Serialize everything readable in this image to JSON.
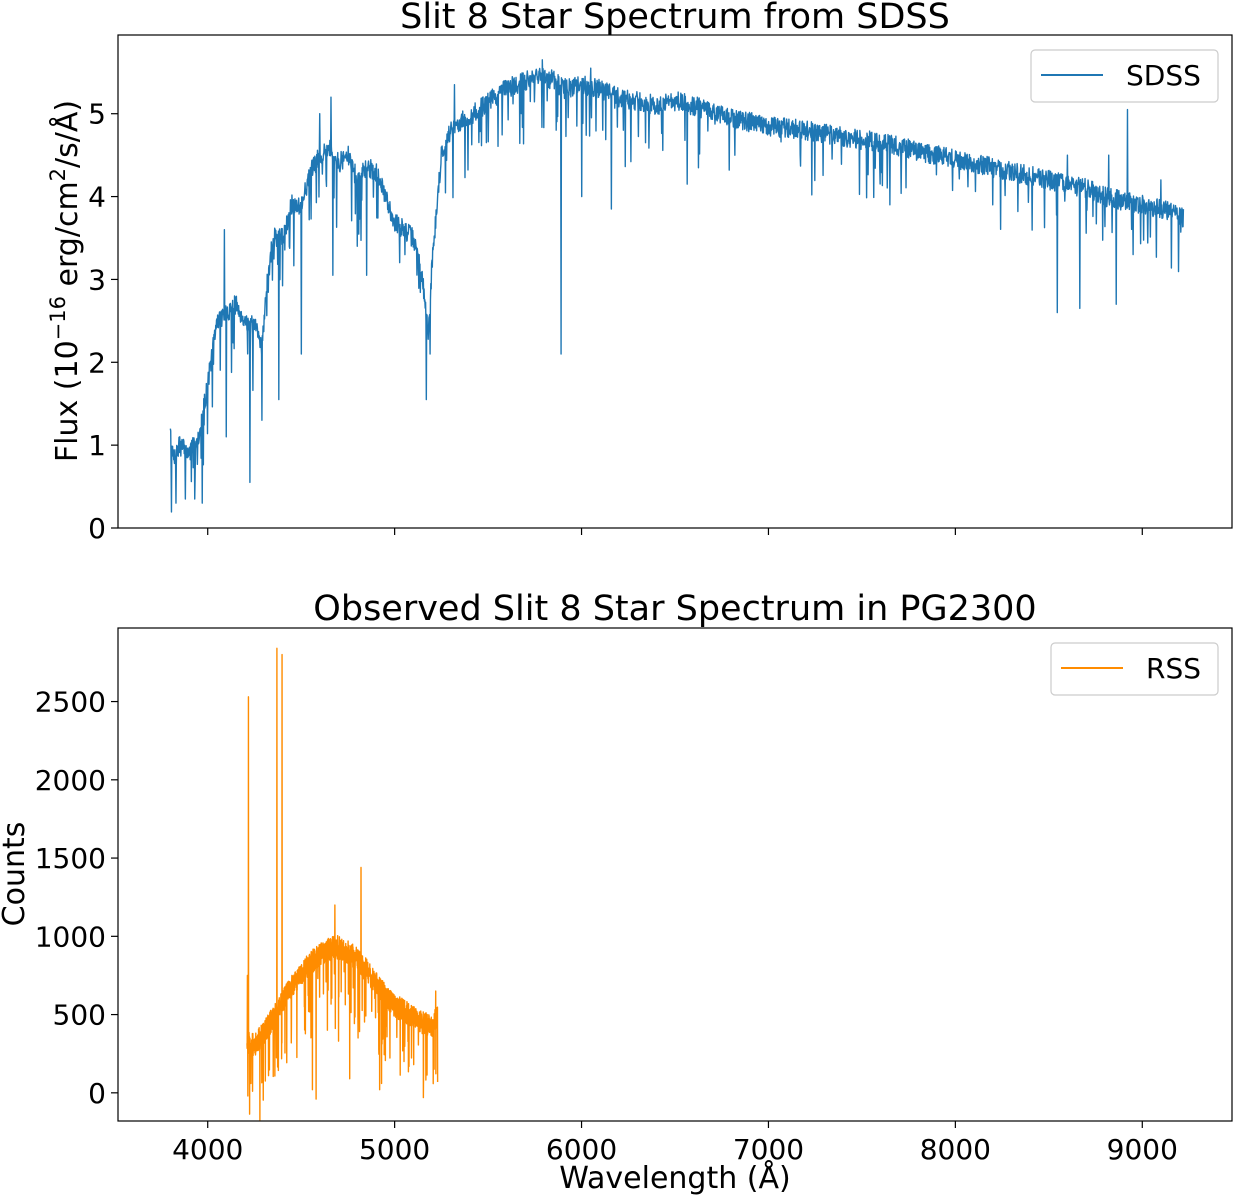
{
  "chart_data": [
    {
      "type": "line",
      "title": "Slit 8 Star Spectrum from SDSS",
      "xlabel": "",
      "ylabel_parts": {
        "pre": "Flux (10",
        "exp1": "−16",
        "mid": " erg/cm",
        "exp2": "2",
        "post": "/s/Å)"
      },
      "xlim": [
        3520,
        9480
      ],
      "ylim": [
        0,
        5.95
      ],
      "yticks": [
        0,
        1,
        2,
        3,
        4,
        5
      ],
      "xticks": [
        4000,
        5000,
        6000,
        7000,
        8000,
        9000
      ],
      "show_xtick_labels": false,
      "grid": false,
      "legend": {
        "position": "top-right",
        "entries": [
          {
            "label": "SDSS",
            "color": "#1f77b4"
          }
        ]
      },
      "series": [
        {
          "name": "SDSS",
          "color": "#1f77b4",
          "x_range": [
            3800,
            9220
          ],
          "points": 2700,
          "seed": 7,
          "noise": 0.12,
          "envelope": [
            [
              3800,
              1.1
            ],
            [
              3820,
              0.8
            ],
            [
              3850,
              1.0
            ],
            [
              3900,
              0.9
            ],
            [
              3950,
              1.1
            ],
            [
              3990,
              1.6
            ],
            [
              4050,
              2.5
            ],
            [
              4100,
              2.6
            ],
            [
              4150,
              2.7
            ],
            [
              4200,
              2.5
            ],
            [
              4260,
              2.4
            ],
            [
              4290,
              2.2
            ],
            [
              4320,
              3.0
            ],
            [
              4350,
              3.5
            ],
            [
              4400,
              3.5
            ],
            [
              4450,
              3.9
            ],
            [
              4500,
              3.9
            ],
            [
              4550,
              4.3
            ],
            [
              4600,
              4.5
            ],
            [
              4650,
              4.6
            ],
            [
              4700,
              4.4
            ],
            [
              4750,
              4.5
            ],
            [
              4800,
              4.2
            ],
            [
              4850,
              4.35
            ],
            [
              4900,
              4.3
            ],
            [
              4950,
              4.0
            ],
            [
              5000,
              3.7
            ],
            [
              5050,
              3.6
            ],
            [
              5100,
              3.5
            ],
            [
              5150,
              3.0
            ],
            [
              5180,
              2.3
            ],
            [
              5200,
              3.2
            ],
            [
              5250,
              4.5
            ],
            [
              5300,
              4.8
            ],
            [
              5350,
              4.9
            ],
            [
              5400,
              4.95
            ],
            [
              5500,
              5.15
            ],
            [
              5600,
              5.3
            ],
            [
              5700,
              5.4
            ],
            [
              5800,
              5.45
            ],
            [
              5850,
              5.4
            ],
            [
              5900,
              5.3
            ],
            [
              6000,
              5.35
            ],
            [
              6100,
              5.3
            ],
            [
              6200,
              5.2
            ],
            [
              6300,
              5.15
            ],
            [
              6400,
              5.1
            ],
            [
              6500,
              5.15
            ],
            [
              6600,
              5.1
            ],
            [
              6700,
              5.0
            ],
            [
              6800,
              4.95
            ],
            [
              6900,
              4.9
            ],
            [
              7000,
              4.85
            ],
            [
              7200,
              4.8
            ],
            [
              7400,
              4.72
            ],
            [
              7600,
              4.65
            ],
            [
              7800,
              4.55
            ],
            [
              8000,
              4.45
            ],
            [
              8200,
              4.35
            ],
            [
              8400,
              4.25
            ],
            [
              8600,
              4.15
            ],
            [
              8700,
              4.1
            ],
            [
              8800,
              4.0
            ],
            [
              9000,
              3.9
            ],
            [
              9100,
              3.85
            ],
            [
              9220,
              3.75
            ]
          ],
          "dips": [
            [
              3805,
              0.75
            ],
            [
              3830,
              0.3
            ],
            [
              3880,
              0.35
            ],
            [
              3930,
              0.35
            ],
            [
              3970,
              0.3
            ],
            [
              4100,
              1.1
            ],
            [
              4225,
              0.55
            ],
            [
              4290,
              1.3
            ],
            [
              4380,
              1.55
            ],
            [
              4500,
              2.1
            ],
            [
              4600,
              2.9
            ],
            [
              4670,
              3.05
            ],
            [
              4800,
              3.4
            ],
            [
              4850,
              3.05
            ],
            [
              5170,
              1.55
            ],
            [
              5190,
              2.1
            ],
            [
              5890,
              2.1
            ],
            [
              6000,
              4.0
            ],
            [
              6160,
              3.85
            ],
            [
              6565,
              4.15
            ],
            [
              7650,
              3.9
            ],
            [
              8200,
              3.9
            ],
            [
              8545,
              2.6
            ],
            [
              8665,
              2.65
            ],
            [
              8860,
              2.7
            ],
            [
              8950,
              3.3
            ]
          ],
          "spikes": [
            [
              4090,
              3.6
            ],
            [
              4600,
              5.0
            ],
            [
              4660,
              5.2
            ],
            [
              5320,
              5.35
            ],
            [
              5790,
              5.65
            ],
            [
              6050,
              5.55
            ],
            [
              8600,
              4.5
            ],
            [
              8820,
              4.5
            ],
            [
              8920,
              5.05
            ],
            [
              9100,
              4.2
            ]
          ]
        }
      ]
    },
    {
      "type": "line",
      "title": "Observed Slit 8 Star Spectrum in PG2300",
      "xlabel": "Wavelength (Å)",
      "ylabel": "Counts",
      "xlim": [
        3520,
        9480
      ],
      "ylim": [
        -180,
        2970
      ],
      "yticks": [
        0,
        500,
        1000,
        1500,
        2000,
        2500
      ],
      "xticks": [
        4000,
        5000,
        6000,
        7000,
        8000,
        9000
      ],
      "xtick_labels": [
        "4000",
        "5000",
        "6000",
        "7000",
        "8000",
        "9000"
      ],
      "ytick_labels": [
        "0",
        "500",
        "1000",
        "1500",
        "2000",
        "2500"
      ],
      "show_xtick_labels": true,
      "grid": false,
      "legend": {
        "position": "top-right",
        "entries": [
          {
            "label": "RSS",
            "color": "#ff8c00"
          }
        ]
      },
      "series": [
        {
          "name": "RSS",
          "color": "#ff8c00",
          "x_range": [
            4210,
            5230
          ],
          "points": 1300,
          "seed": 11,
          "noise": 75,
          "envelope": [
            [
              4210,
              350
            ],
            [
              4230,
              300
            ],
            [
              4260,
              320
            ],
            [
              4300,
              380
            ],
            [
              4350,
              480
            ],
            [
              4400,
              580
            ],
            [
              4450,
              680
            ],
            [
              4500,
              760
            ],
            [
              4550,
              830
            ],
            [
              4600,
              880
            ],
            [
              4650,
              920
            ],
            [
              4700,
              930
            ],
            [
              4750,
              900
            ],
            [
              4800,
              850
            ],
            [
              4850,
              780
            ],
            [
              4900,
              700
            ],
            [
              4950,
              620
            ],
            [
              5000,
              560
            ],
            [
              5050,
              520
            ],
            [
              5100,
              480
            ],
            [
              5150,
              450
            ],
            [
              5200,
              430
            ],
            [
              5230,
              480
            ]
          ],
          "dips": [
            [
              4215,
              -20
            ],
            [
              4580,
              -40
            ],
            [
              4560,
              20
            ],
            [
              4760,
              90
            ],
            [
              4920,
              20
            ],
            [
              4930,
              60
            ],
            [
              5050,
              200
            ],
            [
              4640,
              400
            ],
            [
              4700,
              330
            ]
          ],
          "spikes": [
            [
              4212,
              750
            ],
            [
              4218,
              2530
            ],
            [
              4370,
              2840
            ],
            [
              4398,
              2800
            ],
            [
              4820,
              1440
            ],
            [
              4680,
              1200
            ],
            [
              5220,
              650
            ]
          ]
        }
      ]
    }
  ]
}
